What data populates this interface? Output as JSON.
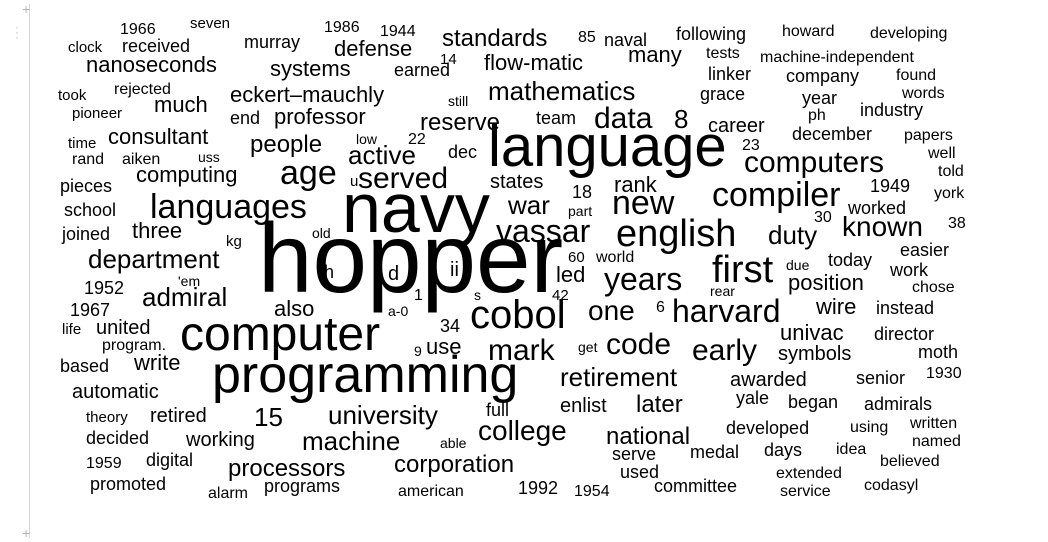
{
  "words": [
    {
      "text": "hopper",
      "size": 1.0
    },
    {
      "text": "navy",
      "size": 0.72
    },
    {
      "text": "language",
      "size": 0.62
    },
    {
      "text": "programming",
      "size": 0.58
    },
    {
      "text": "computer",
      "size": 0.53
    },
    {
      "text": "cobol",
      "size": 0.42
    },
    {
      "text": "english",
      "size": 0.4
    },
    {
      "text": "first",
      "size": 0.4
    },
    {
      "text": "compiler",
      "size": 0.38
    },
    {
      "text": "new",
      "size": 0.38
    },
    {
      "text": "languages",
      "size": 0.37
    },
    {
      "text": "vassar",
      "size": 0.34
    },
    {
      "text": "years",
      "size": 0.34
    },
    {
      "text": "harvard",
      "size": 0.34
    },
    {
      "text": "age",
      "size": 0.36
    },
    {
      "text": "mark",
      "size": 0.32
    },
    {
      "text": "code",
      "size": 0.32
    },
    {
      "text": "early",
      "size": 0.32
    },
    {
      "text": "data",
      "size": 0.32
    },
    {
      "text": "computers",
      "size": 0.32
    },
    {
      "text": "served",
      "size": 0.31
    },
    {
      "text": "known",
      "size": 0.3
    },
    {
      "text": "college",
      "size": 0.3
    },
    {
      "text": "mathematics",
      "size": 0.29
    },
    {
      "text": "admiral",
      "size": 0.28
    },
    {
      "text": "department",
      "size": 0.28
    },
    {
      "text": "active",
      "size": 0.28
    },
    {
      "text": "duty",
      "size": 0.28
    },
    {
      "text": "machine",
      "size": 0.28
    },
    {
      "text": "university",
      "size": 0.28
    },
    {
      "text": "retirement",
      "size": 0.28
    },
    {
      "text": "war",
      "size": 0.28
    },
    {
      "text": "one",
      "size": 0.28
    },
    {
      "text": "national",
      "size": 0.26
    },
    {
      "text": "processors",
      "size": 0.26
    },
    {
      "text": "corporation",
      "size": 0.26
    },
    {
      "text": "later",
      "size": 0.26
    },
    {
      "text": "position",
      "size": 0.25
    },
    {
      "text": "8",
      "size": 0.26
    },
    {
      "text": "15",
      "size": 0.26
    },
    {
      "text": "univac",
      "size": 0.24
    },
    {
      "text": "people",
      "size": 0.25
    },
    {
      "text": "reserve",
      "size": 0.25
    },
    {
      "text": "standards",
      "size": 0.24
    },
    {
      "text": "defense",
      "size": 0.24
    },
    {
      "text": "systems",
      "size": 0.23
    },
    {
      "text": "nanoseconds",
      "size": 0.24
    },
    {
      "text": "flow-matic",
      "size": 0.24
    },
    {
      "text": "professor",
      "size": 0.24
    },
    {
      "text": "eckert–mauchly",
      "size": 0.24
    },
    {
      "text": "many",
      "size": 0.24
    },
    {
      "text": "much",
      "size": 0.24
    },
    {
      "text": "consultant",
      "size": 0.23
    },
    {
      "text": "computing",
      "size": 0.23
    },
    {
      "text": "three",
      "size": 0.23
    },
    {
      "text": "also",
      "size": 0.23
    },
    {
      "text": "use",
      "size": 0.23
    },
    {
      "text": "write",
      "size": 0.23
    },
    {
      "text": "united",
      "size": 0.22
    },
    {
      "text": "automatic",
      "size": 0.22
    },
    {
      "text": "retired",
      "size": 0.22
    },
    {
      "text": "working",
      "size": 0.22
    },
    {
      "text": "enlist",
      "size": 0.22
    },
    {
      "text": "symbols",
      "size": 0.22
    },
    {
      "text": "awarded",
      "size": 0.22
    },
    {
      "text": "career",
      "size": 0.22
    },
    {
      "text": "rank",
      "size": 0.22
    },
    {
      "text": "states",
      "size": 0.21
    },
    {
      "text": "led",
      "size": 0.22
    },
    {
      "text": "wire",
      "size": 0.22
    },
    {
      "text": "today",
      "size": 0.2
    },
    {
      "text": "following",
      "size": 0.2
    },
    {
      "text": "naval",
      "size": 0.2
    },
    {
      "text": "december",
      "size": 0.19
    },
    {
      "text": "industry",
      "size": 0.19
    },
    {
      "text": "company",
      "size": 0.19
    },
    {
      "text": "grace",
      "size": 0.19
    },
    {
      "text": "linker",
      "size": 0.19
    },
    {
      "text": "year",
      "size": 0.19
    },
    {
      "text": "1949",
      "size": 0.19
    },
    {
      "text": "worked",
      "size": 0.19
    },
    {
      "text": "easier",
      "size": 0.19
    },
    {
      "text": "work",
      "size": 0.19
    },
    {
      "text": "instead",
      "size": 0.19
    },
    {
      "text": "director",
      "size": 0.19
    },
    {
      "text": "moth",
      "size": 0.19
    },
    {
      "text": "senior",
      "size": 0.19
    },
    {
      "text": "admirals",
      "size": 0.19
    },
    {
      "text": "began",
      "size": 0.19
    },
    {
      "text": "yale",
      "size": 0.19
    },
    {
      "text": "developed",
      "size": 0.19
    },
    {
      "text": "days",
      "size": 0.19
    },
    {
      "text": "medal",
      "size": 0.19
    },
    {
      "text": "serve",
      "size": 0.19
    },
    {
      "text": "used",
      "size": 0.18
    },
    {
      "text": "committee",
      "size": 0.19
    },
    {
      "text": "full",
      "size": 0.18
    },
    {
      "text": "1992",
      "size": 0.19
    },
    {
      "text": "american",
      "size": 0.16
    },
    {
      "text": "programs",
      "size": 0.19
    },
    {
      "text": "promoted",
      "size": 0.19
    },
    {
      "text": "digital",
      "size": 0.18
    },
    {
      "text": "decided",
      "size": 0.18
    },
    {
      "text": "theory",
      "size": 0.16
    },
    {
      "text": "based",
      "size": 0.18
    },
    {
      "text": "program.",
      "size": 0.17
    },
    {
      "text": "1967",
      "size": 0.18
    },
    {
      "text": "1952",
      "size": 0.18
    },
    {
      "text": "joined",
      "size": 0.18
    },
    {
      "text": "school",
      "size": 0.18
    },
    {
      "text": "pieces",
      "size": 0.18
    },
    {
      "text": "rand",
      "size": 0.16
    },
    {
      "text": "aiken",
      "size": 0.17
    },
    {
      "text": "time",
      "size": 0.16
    },
    {
      "text": "pioneer",
      "size": 0.16
    },
    {
      "text": "took",
      "size": 0.16
    },
    {
      "text": "rejected",
      "size": 0.17
    },
    {
      "text": "clock",
      "size": 0.16
    },
    {
      "text": "received",
      "size": 0.18
    },
    {
      "text": "1966",
      "size": 0.16
    },
    {
      "text": "seven",
      "size": 0.16
    },
    {
      "text": "murray",
      "size": 0.18
    },
    {
      "text": "1986",
      "size": 0.16
    },
    {
      "text": "1944",
      "size": 0.16
    },
    {
      "text": "85",
      "size": 0.16
    },
    {
      "text": "earned",
      "size": 0.18
    },
    {
      "text": "14",
      "size": 0.16
    },
    {
      "text": "still",
      "size": 0.15
    },
    {
      "text": "end",
      "size": 0.18
    },
    {
      "text": "team",
      "size": 0.18
    },
    {
      "text": "22",
      "size": 0.16
    },
    {
      "text": "low",
      "size": 0.15
    },
    {
      "text": "dec",
      "size": 0.18
    },
    {
      "text": "23",
      "size": 0.16
    },
    {
      "text": "howard",
      "size": 0.16
    },
    {
      "text": "developing",
      "size": 0.16
    },
    {
      "text": "tests",
      "size": 0.16
    },
    {
      "text": "machine-independent",
      "size": 0.16
    },
    {
      "text": "found",
      "size": 0.16
    },
    {
      "text": "words",
      "size": 0.16
    },
    {
      "text": "ph",
      "size": 0.16
    },
    {
      "text": "papers",
      "size": 0.16
    },
    {
      "text": "well",
      "size": 0.16
    },
    {
      "text": "told",
      "size": 0.16
    },
    {
      "text": "york",
      "size": 0.16
    },
    {
      "text": "38",
      "size": 0.16
    },
    {
      "text": "30",
      "size": 0.16
    },
    {
      "text": "chose",
      "size": 0.16
    },
    {
      "text": "rear",
      "size": 0.15
    },
    {
      "text": "due",
      "size": 0.15
    },
    {
      "text": "1930",
      "size": 0.16
    },
    {
      "text": "written",
      "size": 0.16
    },
    {
      "text": "named",
      "size": 0.16
    },
    {
      "text": "using",
      "size": 0.16
    },
    {
      "text": "idea",
      "size": 0.16
    },
    {
      "text": "believed",
      "size": 0.16
    },
    {
      "text": "extended",
      "size": 0.16
    },
    {
      "text": "service",
      "size": 0.16
    },
    {
      "text": "codasyl",
      "size": 0.16
    },
    {
      "text": "1954",
      "size": 0.16
    },
    {
      "text": "alarm",
      "size": 0.16
    },
    {
      "text": "able",
      "size": 0.15
    },
    {
      "text": "1959",
      "size": 0.16
    },
    {
      "text": "life",
      "size": 0.15
    },
    {
      "text": "uss",
      "size": 0.15
    },
    {
      "text": "kg",
      "size": 0.15
    },
    {
      "text": "'em",
      "size": 0.15
    },
    {
      "text": "old",
      "size": 0.15
    },
    {
      "text": "part",
      "size": 0.15
    },
    {
      "text": "world",
      "size": 0.16
    },
    {
      "text": "60",
      "size": 0.16
    },
    {
      "text": "18",
      "size": 0.18
    },
    {
      "text": "42",
      "size": 0.16
    },
    {
      "text": "6",
      "size": 0.16
    },
    {
      "text": "34",
      "size": 0.18
    },
    {
      "text": "a-0",
      "size": 0.15
    },
    {
      "text": "9",
      "size": 0.16
    },
    {
      "text": "get",
      "size": 0.15
    },
    {
      "text": "u",
      "size": 0.15
    },
    {
      "text": "h",
      "size": 0.19
    },
    {
      "text": "d",
      "size": 0.2
    },
    {
      "text": "ii",
      "size": 0.2
    },
    {
      "text": "1",
      "size": 0.18
    },
    {
      "text": "s",
      "size": 0.15
    }
  ]
}
